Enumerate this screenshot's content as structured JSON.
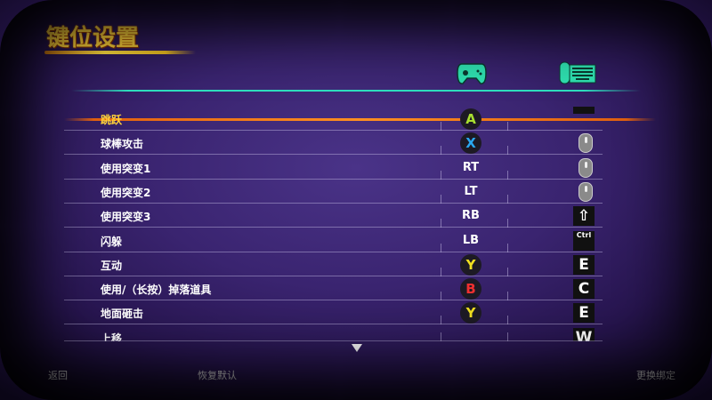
{
  "header": {
    "title": "键位设置"
  },
  "columns": {
    "gamepad_icon": "gamepad-icon",
    "keyboard_icon": "mouse-keyboard-icon"
  },
  "rows": [
    {
      "label": "跳跃",
      "pad": "A",
      "pad_color": "#a8e030",
      "key": "Space",
      "selected": true
    },
    {
      "label": "球棒攻击",
      "pad": "X",
      "pad_color": "#2aa8f0",
      "key": "mouse-left"
    },
    {
      "label": "使用突变1",
      "pad": "RT",
      "key": "mouse-right"
    },
    {
      "label": "使用突变2",
      "pad": "LT",
      "key": "mouse-middle"
    },
    {
      "label": "使用突变3",
      "pad": "RB",
      "key": "⇧"
    },
    {
      "label": "闪躲",
      "pad": "LB",
      "key": "Ctrl"
    },
    {
      "label": "互动",
      "pad": "Y",
      "pad_color": "#f0e020",
      "key": "E"
    },
    {
      "label": "使用/（长按）掉落道具",
      "pad": "B",
      "pad_color": "#f03030",
      "key": "C"
    },
    {
      "label": "地面砸击",
      "pad": "Y",
      "pad_color": "#f0e020",
      "key": "E"
    },
    {
      "label": "上移",
      "pad": "",
      "key": "W"
    }
  ],
  "footer": {
    "back": "返回",
    "reset": "恢复默认",
    "rebind": "更换绑定"
  },
  "colors": {
    "title": "#ffd23a",
    "accent": "#2fe0c0",
    "selection": "#ff9020"
  }
}
